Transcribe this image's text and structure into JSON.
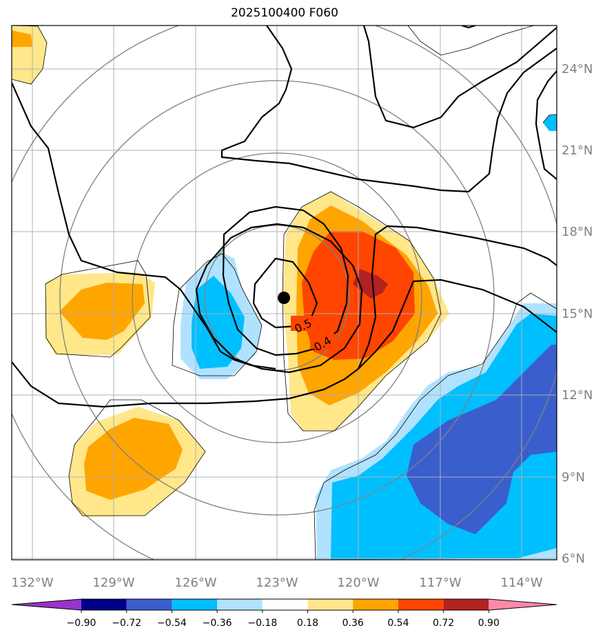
{
  "chart_data": {
    "type": "contour-map",
    "title": "2025100400 F060",
    "lon_range": [
      -132.5,
      -112.5
    ],
    "lat_range": [
      5.9,
      25.5
    ],
    "lon_ticks": [
      "132°W",
      "129°W",
      "126°W",
      "123°W",
      "120°W",
      "117°W",
      "114°W"
    ],
    "lat_ticks": [
      "6°N",
      "9°N",
      "12°N",
      "15°N",
      "18°N",
      "21°N",
      "24°N"
    ],
    "colorbar": {
      "levels": [
        -0.9,
        -0.72,
        -0.54,
        -0.36,
        -0.18,
        0.18,
        0.36,
        0.54,
        0.72,
        0.9
      ],
      "labels": [
        "−0.90",
        "−0.72",
        "−0.54",
        "−0.36",
        "−0.18",
        "0.18",
        "0.36",
        "0.54",
        "0.72",
        "0.90"
      ],
      "colors": [
        "#9933cc",
        "#00008b",
        "#3a5fcd",
        "#00bfff",
        "#b0e2ff",
        "#ffffff",
        "#ffe78a",
        "#ffa500",
        "#ff4500",
        "#b22222",
        "#ff88aa"
      ],
      "extend": "both"
    },
    "contour_labels": [
      "0.5",
      "0.4"
    ],
    "center_marker": {
      "lon": -122.8,
      "lat": 15.6
    },
    "range_rings": "concentric circles around storm center"
  }
}
